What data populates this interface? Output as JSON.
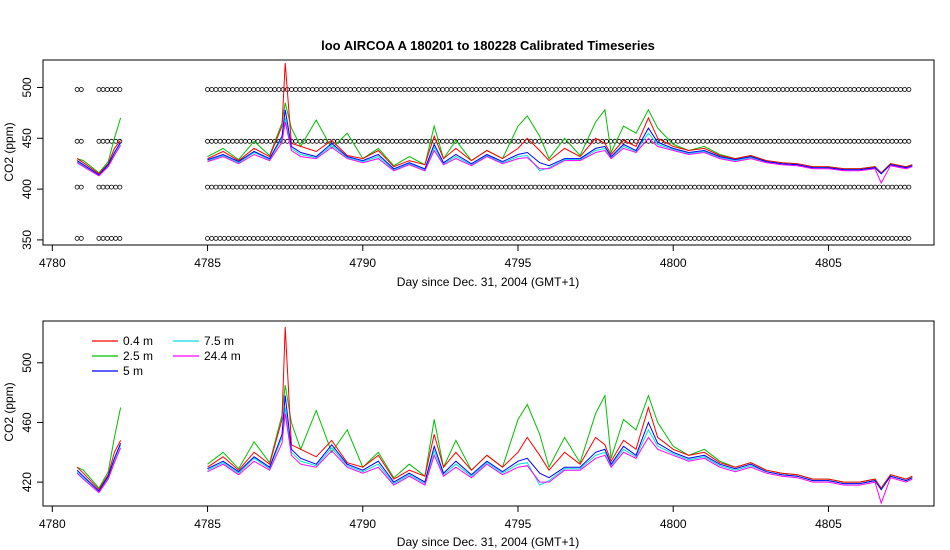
{
  "title": "loo   AIRCOA  A    180201  to  180228   Calibrated Timeseries",
  "chart_data": [
    {
      "type": "line",
      "panel": "top",
      "xlabel": "Day since Dec. 31, 2004 (GMT+1)",
      "ylabel": "CO2 (ppm)",
      "xlim": [
        4779.7,
        4808.4
      ],
      "ylim": [
        345,
        527
      ],
      "xticks": [
        4780,
        4785,
        4790,
        4795,
        4800,
        4805
      ],
      "yticks": [
        350,
        400,
        450,
        500
      ],
      "grid": false,
      "reference_points": {
        "marker": "open-circle",
        "levels": [
          351.5,
          402,
          447,
          498
        ],
        "segments": [
          [
            4780.8,
            4780.95
          ],
          [
            4781.5,
            4782.2
          ],
          [
            4785.0,
            4807.7
          ]
        ]
      },
      "series": [
        {
          "name": "0.4 m",
          "color": "#ff0000",
          "key": "s04"
        },
        {
          "name": "2.5 m",
          "color": "#00c000",
          "key": "s25"
        },
        {
          "name": "5 m",
          "color": "#0000ff",
          "key": "s5"
        },
        {
          "name": "7.5 m",
          "color": "#00e0e0",
          "key": "s75"
        },
        {
          "name": "24.4 m",
          "color": "#ff00ff",
          "key": "s244"
        }
      ]
    },
    {
      "type": "line",
      "panel": "bottom",
      "xlabel": "Day since Dec. 31, 2004 (GMT+1)",
      "ylabel": "CO2 (ppm)",
      "xlim": [
        4779.7,
        4808.4
      ],
      "ylim": [
        404,
        528
      ],
      "xticks": [
        4780,
        4785,
        4790,
        4795,
        4800,
        4805
      ],
      "yticks": [
        420,
        460,
        500
      ],
      "grid": false,
      "legend_placement": "top-left",
      "legend": [
        "0.4 m",
        "2.5 m",
        "5 m",
        "7.5 m",
        "24.4 m"
      ],
      "series_ref": "same as top panel"
    }
  ],
  "series_values": {
    "x": [
      4780.8,
      4781.0,
      4781.5,
      4781.8,
      4782.0,
      4782.2,
      4785.0,
      4785.5,
      4786.0,
      4786.5,
      4787.0,
      4787.4,
      4787.5,
      4787.7,
      4788.0,
      4788.5,
      4789.0,
      4789.5,
      4790.0,
      4790.5,
      4791.0,
      4791.5,
      4792.0,
      4792.3,
      4792.6,
      4793.0,
      4793.5,
      4794.0,
      4794.5,
      4795.0,
      4795.3,
      4795.7,
      4796.0,
      4796.5,
      4797.0,
      4797.5,
      4797.8,
      4798.0,
      4798.4,
      4798.8,
      4799.2,
      4799.5,
      4800.0,
      4800.5,
      4801.0,
      4801.5,
      4802.0,
      4802.5,
      4803.0,
      4803.5,
      4804.0,
      4804.5,
      4805.0,
      4805.5,
      4806.0,
      4806.5,
      4806.7,
      4807.0,
      4807.5,
      4807.7
    ],
    "s04": [
      430,
      426,
      415,
      425,
      440,
      448,
      430,
      437,
      428,
      440,
      432,
      462,
      524,
      445,
      442,
      437,
      448,
      433,
      430,
      438,
      422,
      428,
      424,
      452,
      430,
      440,
      428,
      438,
      430,
      440,
      450,
      438,
      428,
      440,
      432,
      450,
      445,
      434,
      448,
      442,
      470,
      450,
      442,
      438,
      440,
      433,
      430,
      433,
      428,
      426,
      425,
      422,
      422,
      420,
      420,
      422,
      416,
      425,
      422,
      424
    ],
    "s25": [
      430,
      428,
      416,
      427,
      450,
      470,
      432,
      440,
      429,
      447,
      433,
      465,
      485,
      460,
      442,
      468,
      440,
      455,
      430,
      440,
      423,
      432,
      424,
      462,
      430,
      448,
      428,
      438,
      430,
      462,
      472,
      452,
      430,
      450,
      433,
      466,
      478,
      436,
      462,
      455,
      478,
      460,
      444,
      438,
      442,
      434,
      430,
      433,
      428,
      426,
      425,
      422,
      422,
      420,
      420,
      422,
      416,
      425,
      422,
      424
    ],
    "s5": [
      428,
      424,
      414,
      424,
      436,
      446,
      429,
      434,
      427,
      437,
      430,
      452,
      478,
      442,
      436,
      432,
      445,
      432,
      428,
      434,
      420,
      426,
      420,
      444,
      426,
      434,
      425,
      434,
      427,
      434,
      436,
      426,
      423,
      430,
      430,
      440,
      442,
      432,
      444,
      438,
      460,
      446,
      440,
      436,
      438,
      432,
      429,
      432,
      427,
      425,
      424,
      421,
      421,
      419,
      419,
      421,
      415,
      424,
      421,
      423
    ],
    "s75": [
      427,
      423,
      414,
      423,
      435,
      445,
      428,
      433,
      426,
      436,
      429,
      450,
      470,
      440,
      434,
      431,
      443,
      431,
      427,
      432,
      419,
      425,
      419,
      441,
      425,
      432,
      424,
      433,
      426,
      432,
      433,
      418,
      421,
      429,
      429,
      438,
      440,
      431,
      442,
      437,
      455,
      444,
      439,
      435,
      437,
      431,
      428,
      431,
      427,
      425,
      424,
      421,
      421,
      419,
      419,
      421,
      415,
      424,
      421,
      423
    ],
    "s244": [
      426,
      422,
      413,
      422,
      433,
      443,
      427,
      432,
      425,
      434,
      428,
      446,
      466,
      438,
      432,
      430,
      441,
      430,
      426,
      430,
      418,
      424,
      418,
      438,
      424,
      430,
      423,
      432,
      425,
      430,
      431,
      420,
      420,
      428,
      428,
      436,
      438,
      430,
      440,
      436,
      450,
      442,
      438,
      434,
      436,
      430,
      427,
      430,
      426,
      424,
      423,
      420,
      420,
      418,
      418,
      420,
      406,
      423,
      420,
      422
    ]
  }
}
